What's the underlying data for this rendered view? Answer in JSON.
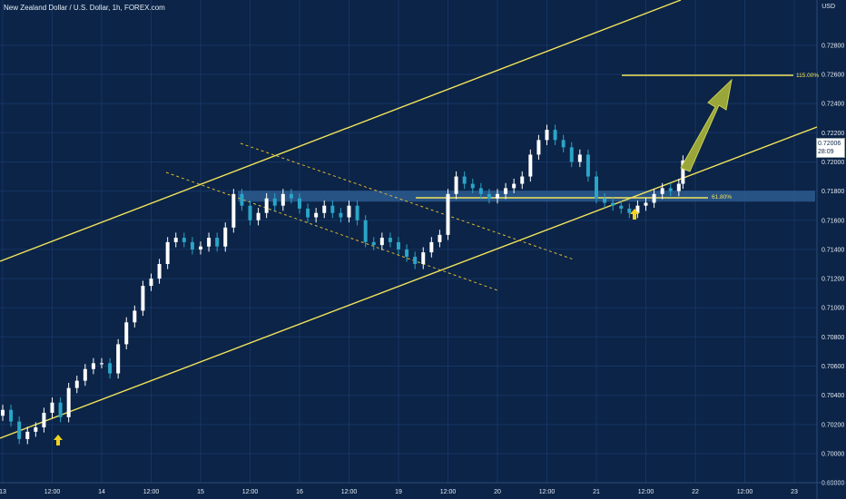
{
  "title": "New Zealand Dollar / U.S. Dollar, 1h, FOREX.com",
  "currency": "USD",
  "last_price": {
    "value": "0.72006",
    "countdown": "28:09"
  },
  "annotations": {
    "fib_115": "115.00%",
    "fib_618": "61.80%"
  },
  "colors": {
    "background": "#0b2447",
    "up_candle": "#ffffff",
    "down_candle": "#2aa5c7",
    "channel_line": "#f2e35b",
    "dashed_line": "#e0b830",
    "support_zone": "#2b5a8f",
    "arrow": "#f1d21f",
    "projection_arrow": "#9aa63a"
  },
  "chart_data": {
    "type": "candlestick",
    "title": "New Zealand Dollar / U.S. Dollar, 1h, FOREX.com",
    "ylim": [
      0.6976,
      0.73
    ],
    "y_ticks": [
      0.728,
      0.726,
      0.724,
      0.722,
      0.72,
      0.718,
      0.716,
      0.714,
      0.712,
      0.71,
      0.708,
      0.706,
      0.704,
      0.702,
      0.7,
      0.698
    ],
    "y_tick_labels": [
      "0.72800",
      "0.72600",
      "0.72400",
      "0.72200",
      "0.72000",
      "0.71800",
      "0.71600",
      "0.71400",
      "0.71200",
      "0.71000",
      "0.70800",
      "0.70600",
      "0.70400",
      "0.70200",
      "0.70000",
      "0.69800"
    ],
    "x_tick_labels": [
      "13",
      "12:00",
      "14",
      "12:00",
      "15",
      "12:00",
      "16",
      "12:00",
      "19",
      "12:00",
      "20",
      "12:00",
      "21",
      "12:00",
      "22",
      "12:00",
      "23"
    ],
    "x_tick_units": [
      0,
      24,
      48,
      72,
      96,
      120,
      144,
      168,
      192,
      216,
      240,
      264,
      288,
      312,
      336,
      360,
      384
    ],
    "x_units_per_label": "hours",
    "series": [
      {
        "name": "",
        "points": [
          [
            0,
            0.703
          ],
          [
            4,
            0.7022
          ],
          [
            8,
            0.701
          ],
          [
            12,
            0.7015
          ],
          [
            16,
            0.7018
          ],
          [
            20,
            0.7028
          ],
          [
            24,
            0.7035
          ],
          [
            28,
            0.7025
          ],
          [
            32,
            0.7045
          ],
          [
            36,
            0.705
          ],
          [
            40,
            0.7058
          ],
          [
            44,
            0.7062
          ],
          [
            48,
            0.7062
          ],
          [
            52,
            0.7055
          ],
          [
            56,
            0.7075
          ],
          [
            60,
            0.709
          ],
          [
            64,
            0.7098
          ],
          [
            68,
            0.7115
          ],
          [
            72,
            0.712
          ],
          [
            76,
            0.713
          ],
          [
            80,
            0.7145
          ],
          [
            84,
            0.7148
          ],
          [
            88,
            0.7145
          ],
          [
            92,
            0.714
          ],
          [
            96,
            0.7142
          ],
          [
            100,
            0.7148
          ],
          [
            104,
            0.7142
          ],
          [
            108,
            0.7155
          ],
          [
            112,
            0.7178
          ],
          [
            116,
            0.717
          ],
          [
            120,
            0.716
          ],
          [
            124,
            0.7165
          ],
          [
            128,
            0.7175
          ],
          [
            132,
            0.717
          ],
          [
            136,
            0.7178
          ],
          [
            140,
            0.7175
          ],
          [
            144,
            0.7168
          ],
          [
            148,
            0.7162
          ],
          [
            152,
            0.7165
          ],
          [
            156,
            0.717
          ],
          [
            160,
            0.7165
          ],
          [
            164,
            0.7162
          ],
          [
            168,
            0.717
          ],
          [
            172,
            0.716
          ],
          [
            176,
            0.7145
          ],
          [
            180,
            0.7143
          ],
          [
            184,
            0.7148
          ],
          [
            188,
            0.7145
          ],
          [
            192,
            0.714
          ],
          [
            196,
            0.7135
          ],
          [
            200,
            0.713
          ],
          [
            204,
            0.7138
          ],
          [
            208,
            0.7145
          ],
          [
            212,
            0.715
          ],
          [
            216,
            0.7178
          ],
          [
            220,
            0.719
          ],
          [
            224,
            0.7185
          ],
          [
            228,
            0.7182
          ],
          [
            232,
            0.7178
          ],
          [
            236,
            0.7175
          ],
          [
            240,
            0.7178
          ],
          [
            244,
            0.7182
          ],
          [
            248,
            0.7185
          ],
          [
            252,
            0.719
          ],
          [
            256,
            0.7205
          ],
          [
            260,
            0.7215
          ],
          [
            264,
            0.7222
          ],
          [
            268,
            0.7215
          ],
          [
            272,
            0.721
          ],
          [
            276,
            0.72
          ],
          [
            280,
            0.7205
          ],
          [
            284,
            0.719
          ],
          [
            288,
            0.7175
          ],
          [
            292,
            0.7172
          ],
          [
            296,
            0.717
          ],
          [
            300,
            0.7168
          ],
          [
            304,
            0.7165
          ],
          [
            308,
            0.717
          ],
          [
            312,
            0.7172
          ],
          [
            316,
            0.7178
          ],
          [
            320,
            0.7182
          ],
          [
            324,
            0.718
          ],
          [
            328,
            0.7185
          ],
          [
            330,
            0.7201
          ]
        ]
      }
    ],
    "grid": true,
    "legend": "none"
  }
}
